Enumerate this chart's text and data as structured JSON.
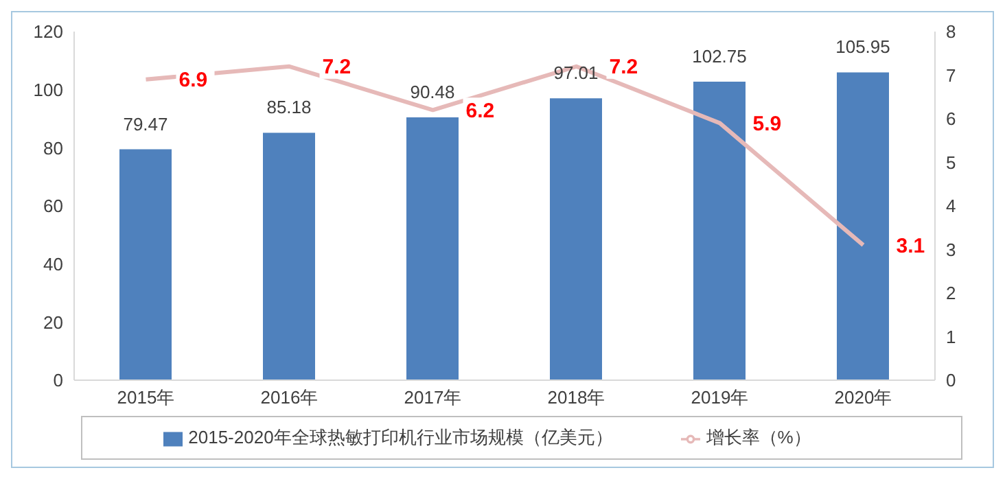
{
  "chart_data": {
    "type": "bar",
    "categories": [
      "2015年",
      "2016年",
      "2017年",
      "2018年",
      "2019年",
      "2020年"
    ],
    "series": [
      {
        "name": "2015-2020年全球热敏打印机行业市场规模（亿美元）",
        "color": "#4f81bd",
        "values": [
          79.47,
          85.18,
          90.48,
          97.01,
          102.75,
          105.95
        ]
      },
      {
        "name": "增长率（%）",
        "type": "line",
        "axis": "y2",
        "color": "#e6b9b8",
        "values": [
          6.9,
          7.2,
          6.2,
          7.2,
          5.9,
          3.1
        ]
      }
    ],
    "ylim": [
      0,
      120
    ],
    "yticks": [
      0,
      20,
      40,
      60,
      80,
      100,
      120
    ],
    "y2lim": [
      0,
      8
    ],
    "y2ticks": [
      0,
      1,
      2,
      3,
      4,
      5,
      6,
      7,
      8
    ],
    "data_labels": true,
    "legend": "bottom",
    "grid": false,
    "marker": "none"
  }
}
